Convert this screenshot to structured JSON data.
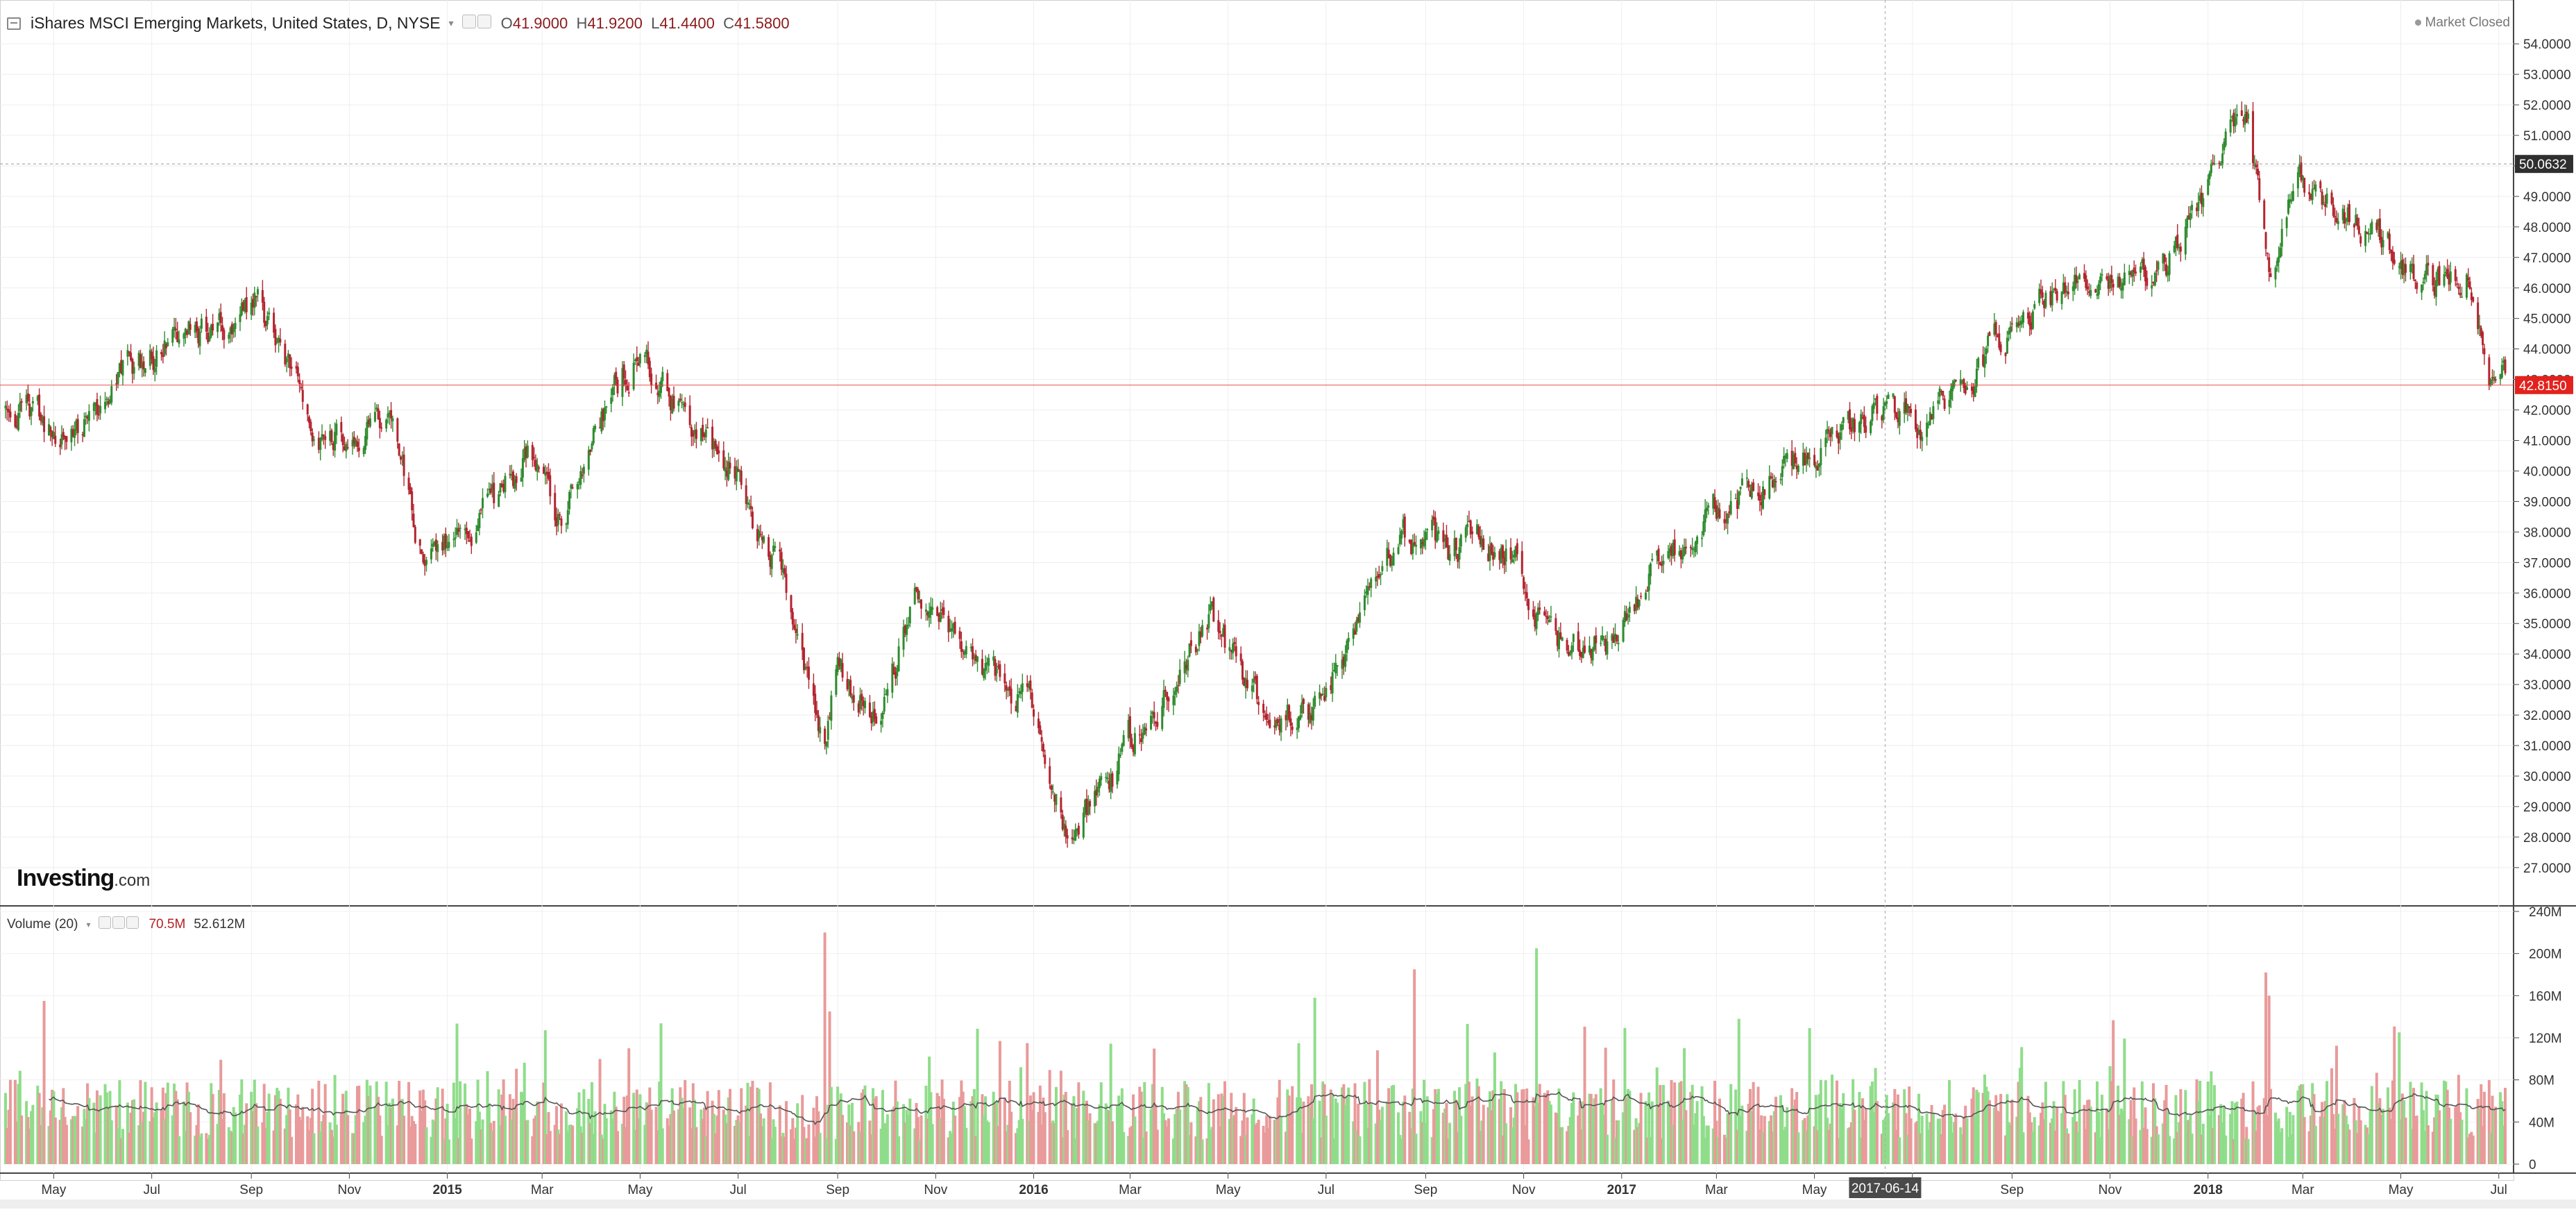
{
  "legend": {
    "symbol": "iShares MSCI Emerging Markets, United States, D, NYSE",
    "open_label": "O",
    "open": "41.9000",
    "high_label": "H",
    "high": "41.9200",
    "low_label": "L",
    "low": "41.4400",
    "close_label": "C",
    "close": "41.5800"
  },
  "market_status": "Market Closed",
  "logo": {
    "main": "Investing",
    "suffix": ".com"
  },
  "volume_legend": {
    "label": "Volume (20)",
    "value1": "70.5M",
    "value2": "52.612M"
  },
  "price_labels": {
    "last_price": "42.8150",
    "crosshair_price": "50.0632"
  },
  "crosshair_date": "2017-06-14",
  "colors": {
    "up": "#2e8b2e",
    "down": "#b3242e",
    "volume_up": "#8fdd8a",
    "volume_down": "#e99a9a",
    "price_line": "#e34040",
    "ma": "#555555"
  },
  "chart_data": [
    {
      "type": "candlestick",
      "title": "iShares MSCI Emerging Markets, United States, D, NYSE",
      "y_ticks": [
        "27.0000",
        "28.0000",
        "29.0000",
        "30.0000",
        "31.0000",
        "32.0000",
        "33.0000",
        "34.0000",
        "35.0000",
        "36.0000",
        "37.0000",
        "38.0000",
        "39.0000",
        "40.0000",
        "41.0000",
        "42.0000",
        "43.0000",
        "44.0000",
        "45.0000",
        "46.0000",
        "47.0000",
        "48.0000",
        "49.0000",
        "50.0000",
        "51.0000",
        "52.0000",
        "53.0000",
        "54.0000"
      ],
      "ylim": [
        26.2,
        54.8
      ],
      "x_ticks": [
        "May",
        "Jul",
        "Sep",
        "Nov",
        "2015",
        "Mar",
        "May",
        "Jul",
        "Sep",
        "Nov",
        "2016",
        "Mar",
        "May",
        "Jul",
        "Sep",
        "Nov",
        "2017",
        "Mar",
        "May",
        "Jul",
        "Sep",
        "Nov",
        "2018",
        "Mar",
        "May",
        "Jul"
      ],
      "x_tick_dates": [
        "2014-05-01",
        "2014-07-01",
        "2014-09-01",
        "2014-11-01",
        "2015-01-01",
        "2015-03-01",
        "2015-05-01",
        "2015-07-01",
        "2015-09-01",
        "2015-11-01",
        "2016-01-01",
        "2016-03-01",
        "2016-05-01",
        "2016-07-01",
        "2016-09-01",
        "2016-11-01",
        "2017-01-01",
        "2017-03-01",
        "2017-05-01",
        "2017-07-01",
        "2017-09-01",
        "2017-11-01",
        "2018-01-01",
        "2018-03-01",
        "2018-05-01",
        "2018-07-01"
      ],
      "x_range": [
        "2014-04-01",
        "2018-07-05"
      ],
      "key_points": [
        {
          "date": "2014-04-01",
          "close": 42.0
        },
        {
          "date": "2014-05-15",
          "close": 41.3
        },
        {
          "date": "2014-06-20",
          "close": 43.5
        },
        {
          "date": "2014-09-03",
          "close": 45.6
        },
        {
          "date": "2014-10-15",
          "close": 41.0
        },
        {
          "date": "2014-11-25",
          "close": 41.8
        },
        {
          "date": "2014-12-16",
          "close": 37.6
        },
        {
          "date": "2015-01-30",
          "close": 38.8
        },
        {
          "date": "2015-02-20",
          "close": 40.5
        },
        {
          "date": "2015-03-12",
          "close": 38.4
        },
        {
          "date": "2015-04-28",
          "close": 44.0
        },
        {
          "date": "2015-05-25",
          "close": 42.0
        },
        {
          "date": "2015-06-30",
          "close": 40.0
        },
        {
          "date": "2015-07-10",
          "close": 38.4
        },
        {
          "date": "2015-07-28",
          "close": 37.0
        },
        {
          "date": "2015-08-24",
          "close": 31.0
        },
        {
          "date": "2015-08-31",
          "close": 33.5
        },
        {
          "date": "2015-09-28",
          "close": 32.2
        },
        {
          "date": "2015-10-20",
          "close": 36.0
        },
        {
          "date": "2015-11-20",
          "close": 34.2
        },
        {
          "date": "2015-12-31",
          "close": 32.2
        },
        {
          "date": "2016-01-20",
          "close": 28.0
        },
        {
          "date": "2016-02-12",
          "close": 29.2
        },
        {
          "date": "2016-03-10",
          "close": 32.0
        },
        {
          "date": "2016-04-20",
          "close": 35.0
        },
        {
          "date": "2016-05-20",
          "close": 32.2
        },
        {
          "date": "2016-06-27",
          "close": 32.0
        },
        {
          "date": "2016-07-20",
          "close": 35.4
        },
        {
          "date": "2016-08-20",
          "close": 37.8
        },
        {
          "date": "2016-09-30",
          "close": 37.5
        },
        {
          "date": "2016-10-25",
          "close": 37.5
        },
        {
          "date": "2016-11-14",
          "close": 34.5
        },
        {
          "date": "2016-12-20",
          "close": 34.2
        },
        {
          "date": "2017-01-31",
          "close": 37.5
        },
        {
          "date": "2017-03-01",
          "close": 39.0
        },
        {
          "date": "2017-03-31",
          "close": 39.8
        },
        {
          "date": "2017-05-10",
          "close": 40.8
        },
        {
          "date": "2017-06-14",
          "close": 42.0
        },
        {
          "date": "2017-07-10",
          "close": 41.5
        },
        {
          "date": "2017-08-10",
          "close": 43.5
        },
        {
          "date": "2017-09-15",
          "close": 45.5
        },
        {
          "date": "2017-10-20",
          "close": 46.2
        },
        {
          "date": "2017-11-15",
          "close": 46.0
        },
        {
          "date": "2017-12-05",
          "close": 46.5
        },
        {
          "date": "2018-01-26",
          "close": 52.0
        },
        {
          "date": "2018-02-08",
          "close": 46.5
        },
        {
          "date": "2018-02-27",
          "close": 49.5
        },
        {
          "date": "2018-03-23",
          "close": 48.5
        },
        {
          "date": "2018-04-20",
          "close": 47.5
        },
        {
          "date": "2018-05-25",
          "close": 46.0
        },
        {
          "date": "2018-06-12",
          "close": 46.5
        },
        {
          "date": "2018-06-28",
          "close": 42.3
        },
        {
          "date": "2018-07-05",
          "close": 42.8
        }
      ],
      "last_price": 42.815,
      "crosshair_price": 50.0632
    },
    {
      "type": "bar",
      "title": "Volume (20)",
      "y_ticks": [
        "0",
        "40M",
        "80M",
        "120M",
        "160M",
        "200M",
        "240M"
      ],
      "ylim": [
        0,
        240
      ],
      "y_unit": "M",
      "typical_volume": 52,
      "moving_average_period": 20,
      "spikes": [
        {
          "date": "2014-04-25",
          "value": 155
        },
        {
          "date": "2015-08-24",
          "value": 220
        },
        {
          "date": "2015-08-27",
          "value": 145
        },
        {
          "date": "2016-06-24",
          "value": 158
        },
        {
          "date": "2016-08-25",
          "value": 185
        },
        {
          "date": "2016-11-09",
          "value": 205
        },
        {
          "date": "2017-03-15",
          "value": 138
        },
        {
          "date": "2018-02-06",
          "value": 182
        },
        {
          "date": "2018-02-08",
          "value": 160
        }
      ]
    }
  ]
}
